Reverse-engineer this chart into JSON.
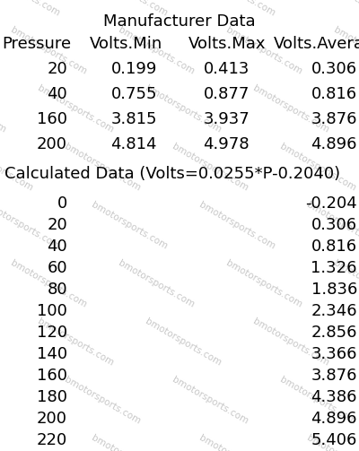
{
  "title1": "Manufacturer Data",
  "mfr_headers": [
    "Pressure",
    "Volts.Min",
    "Volts.Max",
    "Volts.Average"
  ],
  "mfr_data": [
    [
      20,
      0.199,
      0.413,
      0.306
    ],
    [
      40,
      0.755,
      0.877,
      0.816
    ],
    [
      160,
      3.815,
      3.937,
      3.876
    ],
    [
      200,
      4.814,
      4.978,
      4.896
    ]
  ],
  "title2": "Calculated Data (Volts=0.0255*P-0.2040)",
  "calc_data": [
    [
      0,
      -0.204
    ],
    [
      20,
      0.306
    ],
    [
      40,
      0.816
    ],
    [
      60,
      1.326
    ],
    [
      80,
      1.836
    ],
    [
      100,
      2.346
    ],
    [
      120,
      2.856
    ],
    [
      140,
      3.366
    ],
    [
      160,
      3.876
    ],
    [
      180,
      4.386
    ],
    [
      200,
      4.896
    ],
    [
      220,
      5.406
    ]
  ],
  "bg_color": "#ffffff",
  "text_color": "#000000",
  "watermark_text": "bmotorsports.com",
  "watermark_color": "#c8c8c8",
  "font_size": 13,
  "title_font_size": 13
}
